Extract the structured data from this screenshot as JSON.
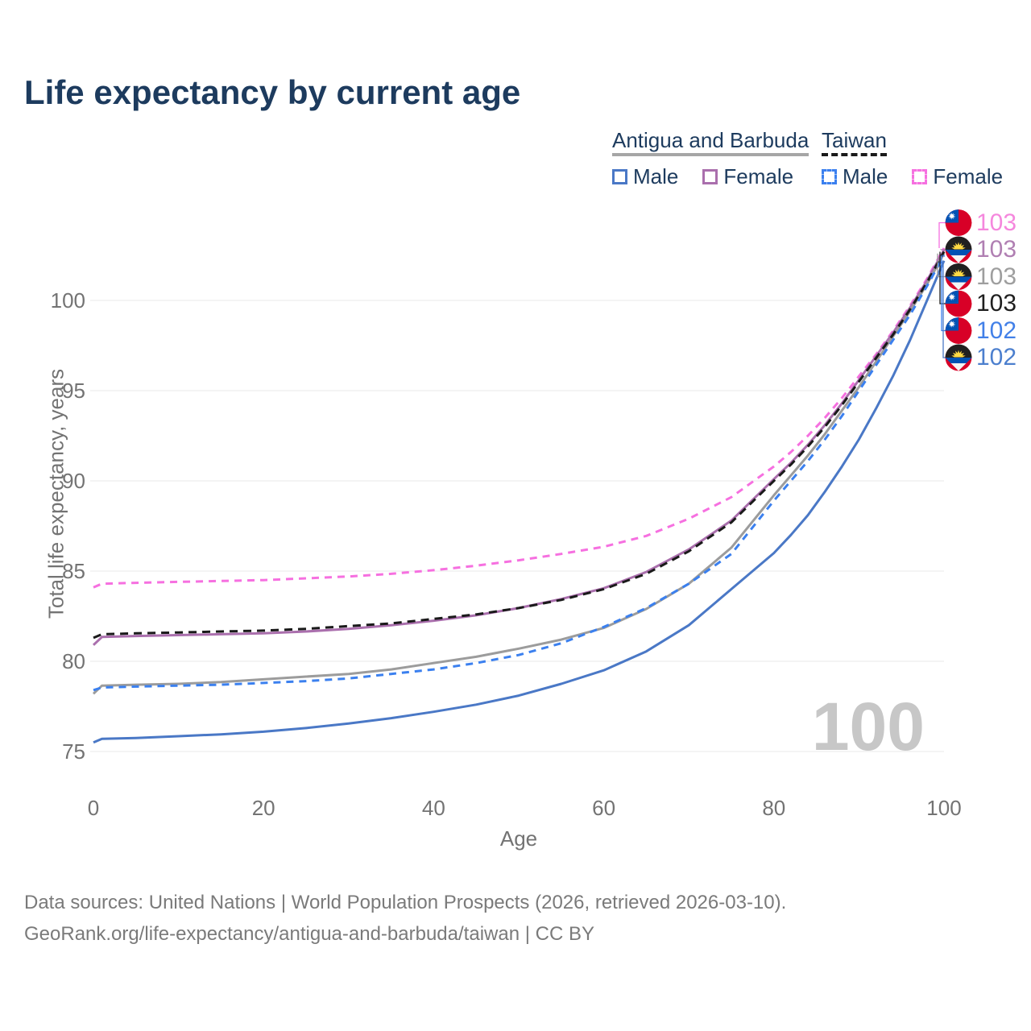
{
  "title": "Life expectancy by current age",
  "legend": {
    "groups": [
      {
        "country": "Antigua and Barbuda",
        "underline_style": "solid",
        "underline_color": "#a6a6a6",
        "items": [
          {
            "label": "Male",
            "style": "solid",
            "color": "#4a78c6"
          },
          {
            "label": "Female",
            "style": "solid",
            "color": "#aa6fad"
          }
        ]
      },
      {
        "country": "Taiwan",
        "underline_style": "dashed",
        "underline_color": "#1a1a1a",
        "items": [
          {
            "label": "Male",
            "style": "dashed",
            "color": "#3b80ef"
          },
          {
            "label": "Female",
            "style": "dashed",
            "color": "#f670e0"
          }
        ]
      }
    ]
  },
  "axes": {
    "y_title": "Total life expectancy, years",
    "x_title": "Age",
    "y_ticks": [
      75,
      80,
      85,
      90,
      95,
      100
    ],
    "x_ticks": [
      0,
      20,
      40,
      60,
      80,
      100
    ]
  },
  "watermark": "100",
  "footer": {
    "line1": "Data sources: United Nations | World Population Prospects (2026, retrieved 2026-03-10).",
    "line2": "GeoRank.org/life-expectancy/antigua-and-barbuda/taiwan | CC BY"
  },
  "chart_data": {
    "type": "line",
    "title": "Life expectancy by current age",
    "xlabel": "Age",
    "ylabel": "Total life expectancy, years",
    "xlim": [
      0,
      100
    ],
    "ylim": [
      74,
      103.5
    ],
    "grid": "horizontal",
    "x": [
      0,
      1,
      5,
      10,
      15,
      20,
      25,
      30,
      35,
      40,
      45,
      50,
      55,
      60,
      65,
      70,
      75,
      80,
      82,
      84,
      86,
      88,
      90,
      92,
      94,
      96,
      98,
      100
    ],
    "series": [
      {
        "name": "Taiwan Female",
        "country": "Taiwan",
        "sex": "female",
        "color": "#f670e0",
        "dash": true,
        "values": [
          84.1,
          84.3,
          84.35,
          84.4,
          84.45,
          84.5,
          84.6,
          84.7,
          84.85,
          85.05,
          85.3,
          85.6,
          85.95,
          86.35,
          86.95,
          87.9,
          89.1,
          90.8,
          91.6,
          92.5,
          93.5,
          94.6,
          95.8,
          97.0,
          98.3,
          99.7,
          101.2,
          102.9
        ],
        "end_label": {
          "value": "103",
          "color": "#f587dd",
          "flag": "taiwan"
        }
      },
      {
        "name": "Antigua and Barbuda Female",
        "country": "Antigua and Barbuda",
        "sex": "female",
        "color": "#aa6fad",
        "dash": false,
        "values": [
          80.9,
          81.35,
          81.4,
          81.45,
          81.5,
          81.55,
          81.65,
          81.8,
          82.0,
          82.25,
          82.55,
          82.95,
          83.45,
          84.05,
          84.95,
          86.2,
          87.8,
          90.1,
          91.0,
          92.0,
          93.1,
          94.3,
          95.6,
          96.9,
          98.2,
          99.6,
          101.1,
          102.8
        ],
        "end_label": {
          "value": "103",
          "color": "#b07fb2",
          "flag": "antigua-and-barbuda"
        }
      },
      {
        "name": "Antigua and Barbuda Total",
        "country": "Antigua and Barbuda",
        "sex": "both",
        "color": "#9c9c9c",
        "dash": false,
        "values": [
          78.2,
          78.65,
          78.7,
          78.75,
          78.85,
          79.0,
          79.15,
          79.3,
          79.55,
          79.9,
          80.25,
          80.7,
          81.2,
          81.85,
          82.9,
          84.3,
          86.3,
          89.2,
          90.3,
          91.4,
          92.6,
          93.9,
          95.2,
          96.6,
          98.0,
          99.4,
          100.9,
          102.6
        ],
        "end_label": {
          "value": "103",
          "color": "#9e9e9e",
          "flag": "antigua-and-barbuda"
        }
      },
      {
        "name": "Taiwan Total",
        "country": "Taiwan",
        "sex": "both",
        "color": "#1a1a1a",
        "dash": true,
        "values": [
          81.3,
          81.5,
          81.55,
          81.6,
          81.65,
          81.7,
          81.8,
          81.95,
          82.1,
          82.35,
          82.6,
          82.95,
          83.4,
          84.0,
          84.85,
          86.1,
          87.7,
          90.0,
          90.9,
          91.9,
          93.0,
          94.2,
          95.5,
          96.8,
          98.1,
          99.5,
          101.0,
          102.7
        ],
        "end_label": {
          "value": "103",
          "color": "#1f1f1f",
          "flag": "taiwan"
        }
      },
      {
        "name": "Taiwan Male",
        "country": "Taiwan",
        "sex": "male",
        "color": "#3b80ef",
        "dash": true,
        "values": [
          78.4,
          78.55,
          78.6,
          78.65,
          78.7,
          78.8,
          78.9,
          79.05,
          79.3,
          79.55,
          79.9,
          80.35,
          81.0,
          81.9,
          82.95,
          84.3,
          85.95,
          88.9,
          90.0,
          91.1,
          92.3,
          93.6,
          95.0,
          96.4,
          97.8,
          99.2,
          100.8,
          102.5
        ],
        "end_label": {
          "value": "102",
          "color": "#4280e8",
          "flag": "taiwan"
        }
      },
      {
        "name": "Antigua and Barbuda Male",
        "country": "Antigua and Barbuda",
        "sex": "male",
        "color": "#4a78c6",
        "dash": false,
        "values": [
          75.5,
          75.7,
          75.75,
          75.85,
          75.95,
          76.1,
          76.3,
          76.55,
          76.85,
          77.2,
          77.6,
          78.1,
          78.75,
          79.5,
          80.55,
          82.0,
          84.0,
          86.0,
          87.0,
          88.1,
          89.4,
          90.8,
          92.3,
          94.0,
          95.8,
          97.8,
          100.0,
          102.2
        ],
        "end_label": {
          "value": "102",
          "color": "#4c7fce",
          "flag": "antigua-and-barbuda"
        }
      }
    ]
  }
}
